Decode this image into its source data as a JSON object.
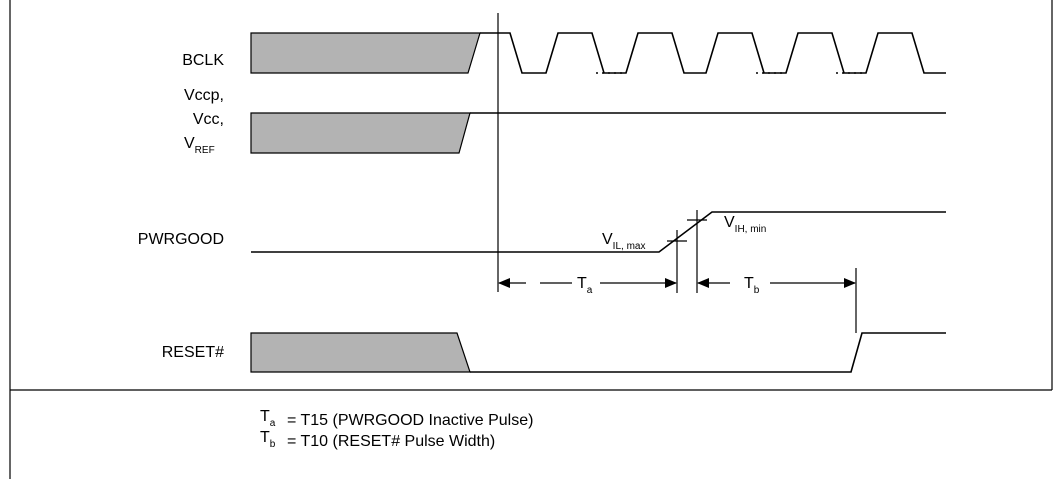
{
  "signals": {
    "bclk": "BCLK",
    "vccp": "Vccp,",
    "vcc": "Vcc,",
    "vref_main": "V",
    "vref_sub": "REF",
    "pwrgood": "PWRGOOD",
    "reset": "RESET#"
  },
  "thresholds": {
    "vil_main": "V",
    "vil_sub": "IL, max",
    "vih_main": "V",
    "vih_sub": "IH, min"
  },
  "intervals": {
    "ta_main": "T",
    "ta_sub": "a",
    "tb_main": "T",
    "tb_sub": "b"
  },
  "legend": [
    {
      "sym": "T",
      "sub": "a",
      "text": "= T15 (PWRGOOD Inactive Pulse)"
    },
    {
      "sym": "T",
      "sub": "b",
      "text": "= T10 (RESET# Pulse Width)"
    }
  ],
  "colors": {
    "shade": "#b3b3b3",
    "line": "#000000"
  }
}
